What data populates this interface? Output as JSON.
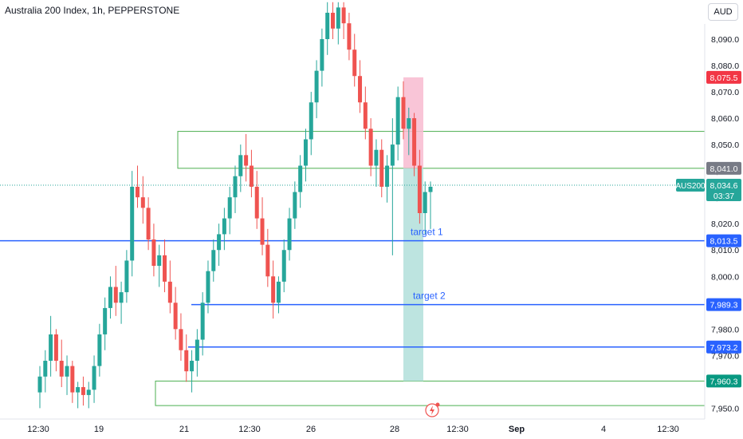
{
  "header": {
    "title": "Australia 200 Index, 1h, PEPPERSTONE",
    "currency": "AUD"
  },
  "colors": {
    "up": "#26a69a",
    "down": "#ef5350",
    "level_line": "#2962ff",
    "zone_border": "#4caf50",
    "profit_zone": "#b2dfdb",
    "loss_zone": "#f8bbd0"
  },
  "chart_data": {
    "type": "candlestick",
    "y_axis": {
      "ticks": [
        "8,090.0",
        "8,080.0",
        "8,070.0",
        "8,060.0",
        "8,050.0",
        "8,040.0",
        "8,030.0",
        "8,020.0",
        "8,010.0",
        "8,000.0",
        "7,990.0",
        "7,980.0",
        "7,970.0",
        "7,960.0",
        "7,950.0"
      ],
      "ylim": [
        7948,
        8104
      ]
    },
    "x_axis": {
      "ticks": [
        "12:30",
        "19",
        "21",
        "12:30",
        "26",
        "28",
        "12:30",
        "Sep",
        "4",
        "12:30"
      ]
    },
    "price_labels": [
      {
        "text": "8,075.5",
        "value": 8075.5,
        "color": "#f23645"
      },
      {
        "text": "8,041.0",
        "value": 8041.0,
        "color": "#787b86"
      },
      {
        "text": "8,013.5",
        "value": 8013.5,
        "color": "#2962ff"
      },
      {
        "text": "7,989.3",
        "value": 7989.3,
        "color": "#2962ff"
      },
      {
        "text": "7,973.2",
        "value": 7973.2,
        "color": "#2962ff"
      },
      {
        "text": "7,960.3",
        "value": 7960.3,
        "color": "#089981"
      }
    ],
    "current": {
      "symbol": "AUS200",
      "price": "8,034.6",
      "value": 8034.6,
      "countdown": "03:37"
    },
    "annotations": [
      {
        "text": "target 1",
        "value": 8013.5
      },
      {
        "text": "target 2",
        "value": 7989.3
      }
    ],
    "levels": [
      8013.5,
      7989.3,
      7973.2
    ],
    "zones": [
      {
        "name": "upper-supply-zone",
        "high": 8055,
        "low": 8041
      },
      {
        "name": "lower-demand-zone",
        "high": 7960.3,
        "low": 7951
      }
    ],
    "trade_position": {
      "stop": 8075.5,
      "entry": 8041.0,
      "target": 7960.3
    },
    "candles": [
      [
        7956,
        7966,
        7950,
        7962
      ],
      [
        7962,
        7972,
        7956,
        7968
      ],
      [
        7968,
        7985,
        7962,
        7978
      ],
      [
        7978,
        7980,
        7964,
        7968
      ],
      [
        7968,
        7976,
        7958,
        7962
      ],
      [
        7962,
        7970,
        7955,
        7966
      ],
      [
        7966,
        7968,
        7952,
        7956
      ],
      [
        7956,
        7960,
        7950,
        7958
      ],
      [
        7958,
        7962,
        7951,
        7955
      ],
      [
        7955,
        7960,
        7950,
        7957
      ],
      [
        7957,
        7970,
        7952,
        7966
      ],
      [
        7966,
        7982,
        7962,
        7978
      ],
      [
        7978,
        7992,
        7972,
        7988
      ],
      [
        7988,
        8000,
        7984,
        7996
      ],
      [
        7996,
        8004,
        7985,
        7990
      ],
      [
        7990,
        7998,
        7982,
        7994
      ],
      [
        7994,
        8010,
        7990,
        8006
      ],
      [
        8006,
        8040,
        8000,
        8034
      ],
      [
        8034,
        8042,
        8026,
        8030
      ],
      [
        8030,
        8038,
        8020,
        8026
      ],
      [
        8026,
        8030,
        8010,
        8014
      ],
      [
        8014,
        8020,
        8000,
        8004
      ],
      [
        8004,
        8012,
        7996,
        8008
      ],
      [
        8008,
        8014,
        7994,
        7998
      ],
      [
        7998,
        8006,
        7986,
        7990
      ],
      [
        7990,
        7996,
        7976,
        7980
      ],
      [
        7980,
        7986,
        7968,
        7972
      ],
      [
        7972,
        7978,
        7960,
        7964
      ],
      [
        7964,
        7972,
        7956,
        7968
      ],
      [
        7968,
        7980,
        7962,
        7976
      ],
      [
        7976,
        7994,
        7970,
        7990
      ],
      [
        7990,
        8006,
        7986,
        8002
      ],
      [
        8002,
        8014,
        7998,
        8010
      ],
      [
        8010,
        8020,
        8004,
        8016
      ],
      [
        8016,
        8026,
        8010,
        8022
      ],
      [
        8022,
        8034,
        8016,
        8030
      ],
      [
        8030,
        8042,
        8024,
        8038
      ],
      [
        8038,
        8050,
        8032,
        8046
      ],
      [
        8046,
        8054,
        8036,
        8042
      ],
      [
        8042,
        8048,
        8030,
        8034
      ],
      [
        8034,
        8040,
        8018,
        8022
      ],
      [
        8022,
        8030,
        8008,
        8012
      ],
      [
        8012,
        8018,
        7996,
        8000
      ],
      [
        8000,
        8006,
        7984,
        7990
      ],
      [
        7990,
        8000,
        7986,
        7998
      ],
      [
        7998,
        8014,
        7994,
        8010
      ],
      [
        8010,
        8026,
        8006,
        8022
      ],
      [
        8022,
        8036,
        8018,
        8032
      ],
      [
        8032,
        8046,
        8026,
        8042
      ],
      [
        8042,
        8056,
        8036,
        8052
      ],
      [
        8052,
        8070,
        8046,
        8066
      ],
      [
        8066,
        8082,
        8060,
        8078
      ],
      [
        8078,
        8094,
        8072,
        8090
      ],
      [
        8090,
        8104,
        8084,
        8100
      ],
      [
        8100,
        8104,
        8090,
        8094
      ],
      [
        8094,
        8104,
        8088,
        8102
      ],
      [
        8102,
        8104,
        8090,
        8096
      ],
      [
        8096,
        8100,
        8082,
        8086
      ],
      [
        8086,
        8092,
        8072,
        8076
      ],
      [
        8076,
        8082,
        8062,
        8066
      ],
      [
        8066,
        8072,
        8052,
        8056
      ],
      [
        8056,
        8060,
        8038,
        8042
      ],
      [
        8042,
        8052,
        8034,
        8048
      ],
      [
        8048,
        8052,
        8030,
        8034
      ],
      [
        8034,
        8046,
        8028,
        8042
      ],
      [
        8042,
        8060,
        8008,
        8050
      ],
      [
        8050,
        8072,
        8044,
        8068
      ],
      [
        8068,
        8074,
        8052,
        8056
      ],
      [
        8056,
        8064,
        8046,
        8060
      ],
      [
        8060,
        8062,
        8038,
        8042
      ],
      [
        8042,
        8048,
        8020,
        8024
      ],
      [
        8024,
        8036,
        8016,
        8032
      ],
      [
        8032,
        8036,
        8018,
        8034
      ]
    ]
  }
}
